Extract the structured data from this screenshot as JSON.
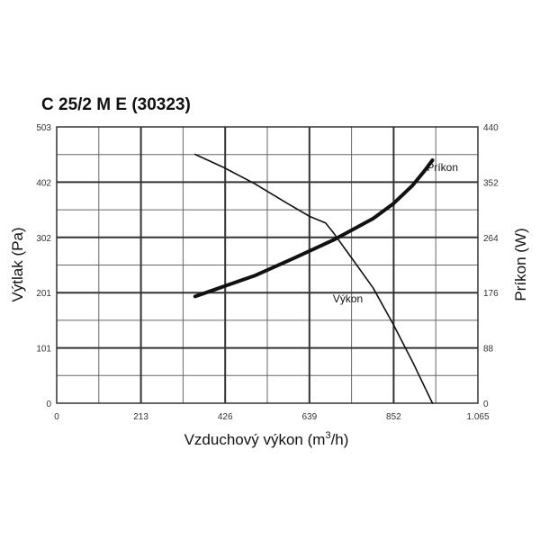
{
  "chart_data": {
    "type": "line",
    "title": "C 25/2 M E (30323)",
    "xlabel_main": "Vzduchový výkon (m",
    "xlabel_sup": "3",
    "xlabel_tail": "/h)",
    "ylabel": "Výtlak (Pa)",
    "y2label": "Príkon (W)",
    "xlim": [
      0,
      1065
    ],
    "ylim": [
      0,
      503
    ],
    "y2lim": [
      0,
      440
    ],
    "x_ticks": [
      "0",
      "213",
      "426",
      "639",
      "852",
      "1.065"
    ],
    "y_ticks": [
      "0",
      "101",
      "201",
      "302",
      "402",
      "503"
    ],
    "y2_ticks": [
      "0",
      "88",
      "176",
      "264",
      "352",
      "440"
    ],
    "grid": true,
    "series": [
      {
        "name": "Výkon",
        "axis": "left",
        "x": [
          350,
          420,
          500,
          580,
          640,
          680,
          700,
          730,
          760,
          800,
          850,
          900,
          950
        ],
        "y": [
          453,
          430,
          400,
          365,
          340,
          328,
          310,
          280,
          250,
          210,
          145,
          75,
          0
        ]
      },
      {
        "name": "Príkon",
        "axis": "right",
        "x": [
          350,
          400,
          500,
          600,
          700,
          800,
          850,
          900,
          930,
          950
        ],
        "y": [
          170,
          181,
          203,
          231,
          260,
          294,
          317,
          347,
          370,
          387
        ]
      }
    ]
  }
}
